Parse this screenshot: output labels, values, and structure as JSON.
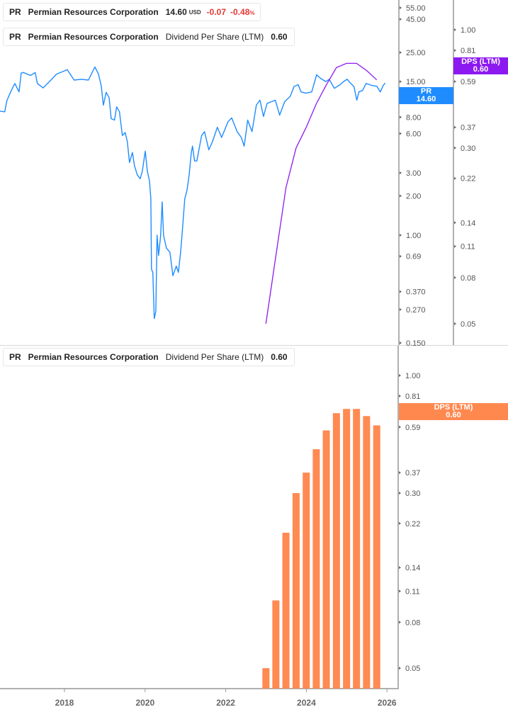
{
  "colors": {
    "price": "#1E8CFF",
    "dps_line": "#8C1AF0",
    "dps_bars": "#FF8A52",
    "negative": "#E53935",
    "axis": "#B0B0B0",
    "tick_text": "#555555"
  },
  "legends": {
    "price": {
      "ticker": "PR",
      "name": "Permian Resources Corporation",
      "price": "14.60",
      "currency": "USD",
      "change": "-0.07",
      "change_pct": "-0.48",
      "pct_sign": "%"
    },
    "dps_top": {
      "ticker": "PR",
      "name": "Permian Resources Corporation",
      "metric": "Dividend Per Share (LTM)",
      "value": "0.60"
    },
    "dps_bottom": {
      "ticker": "PR",
      "name": "Permian Resources Corporation",
      "metric": "Dividend Per Share (LTM)",
      "value": "0.60"
    }
  },
  "flags": {
    "price": {
      "label": "PR",
      "value": "14.60"
    },
    "dps_top": {
      "label": "DPS (LTM)",
      "value": "0.60"
    },
    "dps_bottom": {
      "label": "DPS (LTM)",
      "value": "0.60"
    }
  },
  "chart_data": [
    {
      "type": "line",
      "scale": "log",
      "series": [
        {
          "name": "PR",
          "points": [
            [
              "2016-05-25",
              8.9
            ],
            [
              "2016-07-09",
              8.8
            ],
            [
              "2016-07-28",
              10.7
            ],
            [
              "2016-09-06",
              12.8
            ],
            [
              "2016-10-08",
              14.5
            ],
            [
              "2016-11-16",
              12.5
            ],
            [
              "2016-12-05",
              17.4
            ],
            [
              "2016-12-24",
              17.6
            ],
            [
              "2017-02-27",
              16.7
            ],
            [
              "2017-04-11",
              17.6
            ],
            [
              "2017-04-30",
              14.5
            ],
            [
              "2017-06-21",
              13.4
            ],
            [
              "2017-08-18",
              15.0
            ],
            [
              "2017-10-21",
              17.1
            ],
            [
              "2017-12-25",
              18.0
            ],
            [
              "2018-01-26",
              18.5
            ],
            [
              "2018-03-29",
              15.4
            ],
            [
              "2018-06-03",
              15.6
            ],
            [
              "2018-08-06",
              15.4
            ],
            [
              "2018-10-03",
              19.4
            ],
            [
              "2018-11-05",
              17.1
            ],
            [
              "2018-11-30",
              13.9
            ],
            [
              "2018-12-19",
              9.9
            ],
            [
              "2019-01-14",
              12.4
            ],
            [
              "2019-02-09",
              11.3
            ],
            [
              "2019-02-28",
              7.8
            ],
            [
              "2019-03-30",
              7.6
            ],
            [
              "2019-04-19",
              9.6
            ],
            [
              "2019-05-14",
              8.8
            ],
            [
              "2019-06-09",
              5.8
            ],
            [
              "2019-07-05",
              6.1
            ],
            [
              "2019-07-24",
              5.2
            ],
            [
              "2019-08-13",
              3.6
            ],
            [
              "2019-09-08",
              4.3
            ],
            [
              "2019-09-27",
              3.4
            ],
            [
              "2019-10-22",
              2.9
            ],
            [
              "2019-11-17",
              2.7
            ],
            [
              "2019-12-07",
              3.1
            ],
            [
              "2020-01-02",
              4.4
            ],
            [
              "2020-01-21",
              3.1
            ],
            [
              "2020-02-10",
              2.6
            ],
            [
              "2020-02-22",
              1.9
            ],
            [
              "2020-02-28",
              0.55
            ],
            [
              "2020-03-11",
              0.52
            ],
            [
              "2020-03-24",
              0.23
            ],
            [
              "2020-04-07",
              0.26
            ],
            [
              "2020-04-19",
              1.0
            ],
            [
              "2020-05-02",
              0.7
            ],
            [
              "2020-05-21",
              0.99
            ],
            [
              "2020-06-04",
              1.8
            ],
            [
              "2020-06-16",
              1.0
            ],
            [
              "2020-07-12",
              0.8
            ],
            [
              "2020-08-13",
              0.74
            ],
            [
              "2020-09-09",
              0.49
            ],
            [
              "2020-10-10",
              0.58
            ],
            [
              "2020-10-29",
              0.52
            ],
            [
              "2020-11-18",
              0.74
            ],
            [
              "2020-12-01",
              1.0
            ],
            [
              "2020-12-26",
              1.9
            ],
            [
              "2021-01-15",
              2.2
            ],
            [
              "2021-02-04",
              2.9
            ],
            [
              "2021-02-23",
              4.3
            ],
            [
              "2021-03-06",
              4.8
            ],
            [
              "2021-03-25",
              3.7
            ],
            [
              "2021-04-14",
              3.7
            ],
            [
              "2021-05-28",
              5.8
            ],
            [
              "2021-06-23",
              6.2
            ],
            [
              "2021-08-01",
              4.5
            ],
            [
              "2021-09-03",
              5.2
            ],
            [
              "2021-10-17",
              6.7
            ],
            [
              "2021-11-25",
              5.6
            ],
            [
              "2022-01-22",
              7.4
            ],
            [
              "2022-02-24",
              7.9
            ],
            [
              "2022-04-14",
              6.2
            ],
            [
              "2022-05-22",
              5.6
            ],
            [
              "2022-06-17",
              4.8
            ],
            [
              "2022-07-19",
              7.6
            ],
            [
              "2022-08-27",
              6.2
            ],
            [
              "2022-10-05",
              9.9
            ],
            [
              "2022-11-07",
              10.8
            ],
            [
              "2022-12-09",
              8.1
            ],
            [
              "2023-01-10",
              10.2
            ],
            [
              "2023-02-18",
              10.5
            ],
            [
              "2023-03-26",
              10.8
            ],
            [
              "2023-05-04",
              8.3
            ],
            [
              "2023-06-18",
              10.5
            ],
            [
              "2023-08-09",
              11.6
            ],
            [
              "2023-09-11",
              13.7
            ],
            [
              "2023-10-19",
              14.2
            ],
            [
              "2023-11-14",
              12.5
            ],
            [
              "2023-12-28",
              12.2
            ],
            [
              "2024-02-19",
              12.5
            ],
            [
              "2024-04-03",
              16.9
            ],
            [
              "2024-05-11",
              15.8
            ],
            [
              "2024-06-25",
              15.0
            ],
            [
              "2024-07-27",
              15.6
            ],
            [
              "2024-09-11",
              13.3
            ],
            [
              "2024-11-02",
              14.2
            ],
            [
              "2024-12-04",
              15.0
            ],
            [
              "2025-01-05",
              15.6
            ],
            [
              "2025-02-07",
              14.5
            ],
            [
              "2025-03-08",
              13.7
            ],
            [
              "2025-04-03",
              10.8
            ],
            [
              "2025-04-22",
              12.5
            ],
            [
              "2025-05-24",
              12.8
            ],
            [
              "2025-06-26",
              14.5
            ],
            [
              "2025-08-16",
              14.0
            ],
            [
              "2025-10-01",
              13.8
            ],
            [
              "2025-11-02",
              12.5
            ],
            [
              "2025-11-28",
              14.0
            ],
            [
              "2025-12-16",
              14.6
            ]
          ]
        }
      ],
      "y_ticks": [
        "55.00",
        "45.00",
        "25.00",
        "15.00",
        "8.00",
        "6.00",
        "3.00",
        "2.00",
        "1.00",
        "0.69",
        "0.370",
        "0.270",
        "0.150"
      ],
      "overlay": {
        "type": "line",
        "scale": "log",
        "series_ref": "dps",
        "y_ticks": [
          "1.00",
          "0.81",
          "0.59",
          "0.37",
          "0.30",
          "0.22",
          "0.14",
          "0.11",
          "0.08",
          "0.05"
        ]
      }
    },
    {
      "type": "bar",
      "scale": "log",
      "categories": [
        "2022-12-31",
        "2023-03-31",
        "2023-06-30",
        "2023-09-30",
        "2023-12-31",
        "2024-03-31",
        "2024-06-30",
        "2024-09-30",
        "2024-12-31",
        "2025-03-31",
        "2025-06-30",
        "2025-09-30"
      ],
      "values": [
        0.05,
        0.1,
        0.2,
        0.3,
        0.37,
        0.47,
        0.57,
        0.68,
        0.71,
        0.71,
        0.66,
        0.6
      ],
      "y_ticks": [
        "1.00",
        "0.81",
        "0.59",
        "0.37",
        "0.30",
        "0.22",
        "0.14",
        "0.11",
        "0.08",
        "0.05"
      ],
      "x_ticks": [
        "2018",
        "2020",
        "2022",
        "2024",
        "2026"
      ]
    }
  ]
}
